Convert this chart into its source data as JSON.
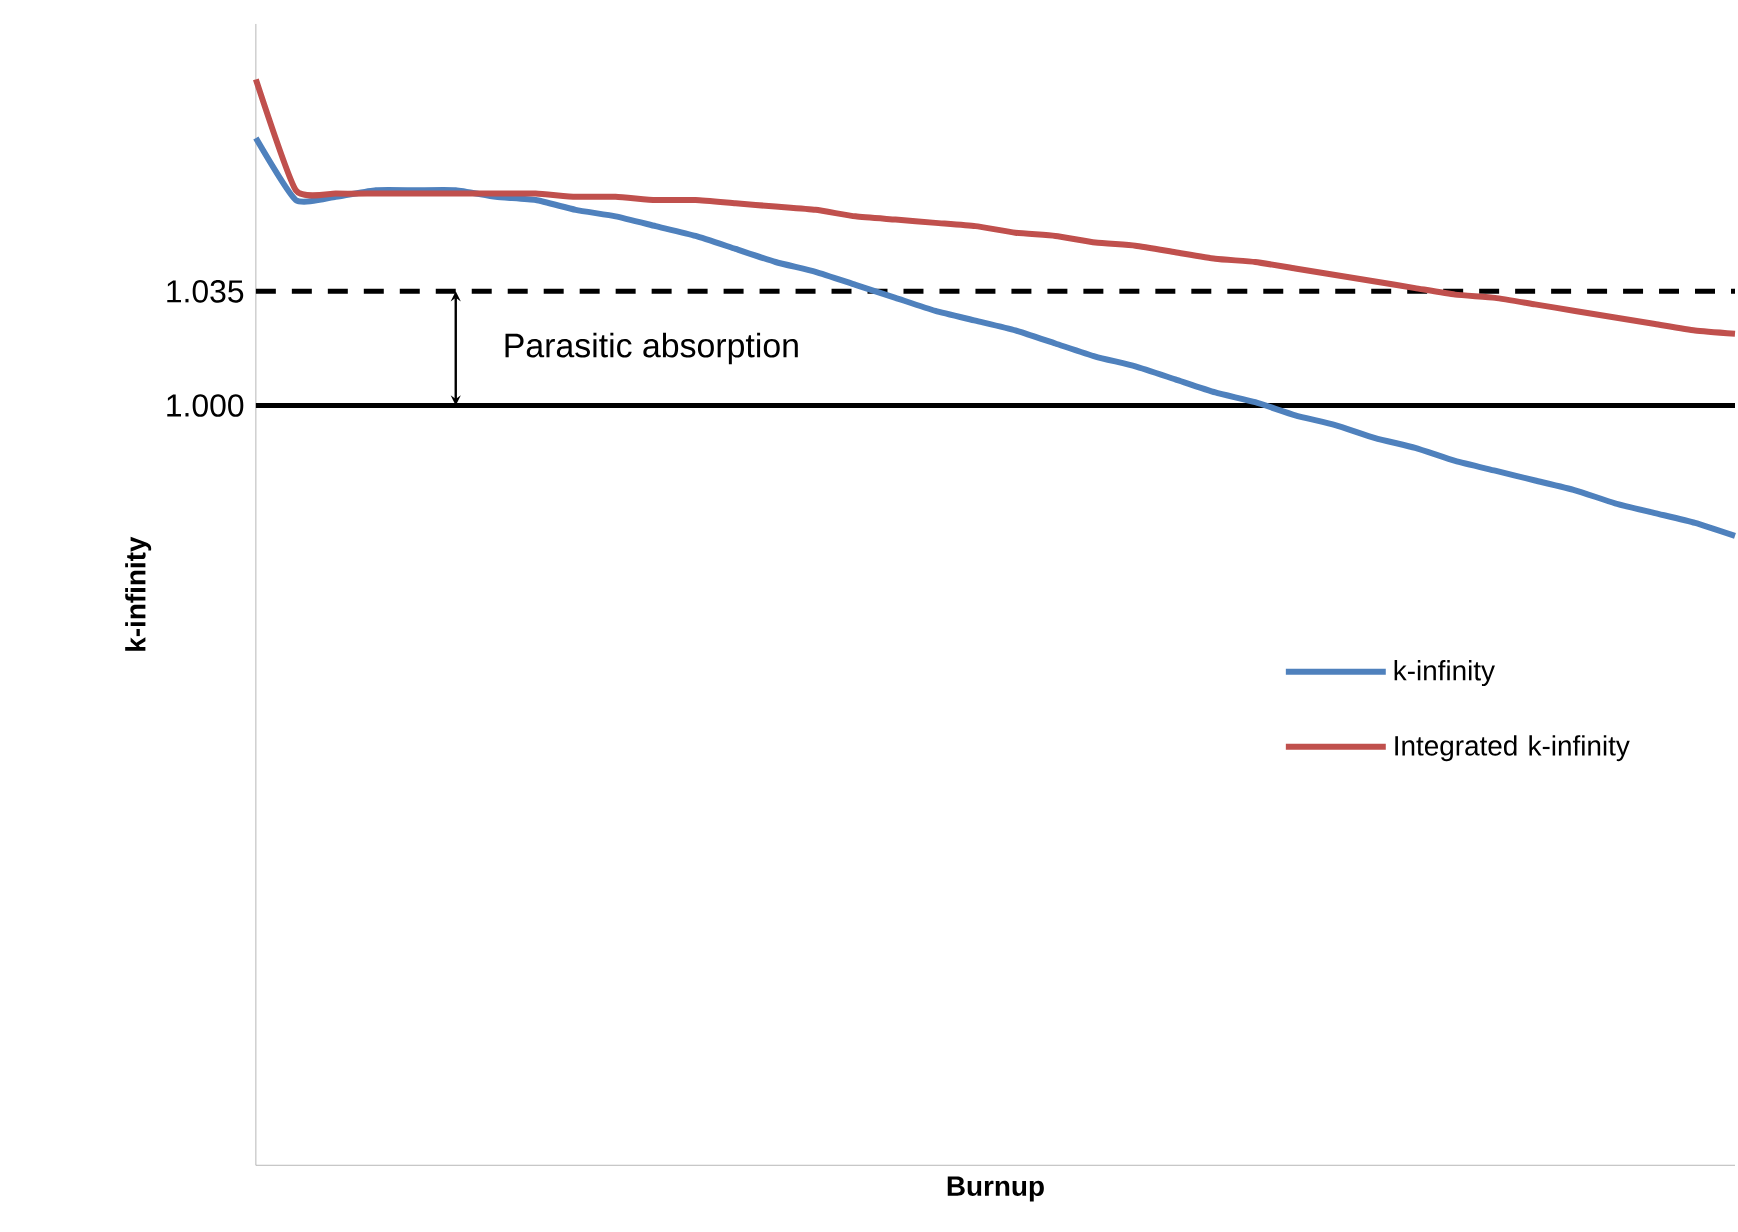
{
  "chart_data": {
    "type": "line",
    "xlabel": "Burnup",
    "ylabel": "k-infinity",
    "categories": [
      null,
      null,
      null,
      null,
      null,
      null,
      null,
      null,
      null,
      null,
      null,
      null,
      null,
      null,
      null,
      null,
      null,
      null,
      null,
      null,
      null,
      null,
      null,
      null,
      null,
      null,
      null,
      null,
      null,
      null,
      null,
      null,
      null,
      null,
      null,
      null,
      null,
      null
    ],
    "ylim": [
      0.767,
      1.117
    ],
    "yticks": [
      {
        "value": 1.0,
        "label": "1.000"
      },
      {
        "value": 1.035,
        "label": "1.035"
      }
    ],
    "series": [
      {
        "name": "k-infinity",
        "color": "#4f81bd",
        "values": [
          1.082,
          1.063,
          1.064,
          1.066,
          1.066,
          1.066,
          1.064,
          1.063,
          1.06,
          1.058,
          1.055,
          1.052,
          1.048,
          1.044,
          1.041,
          1.037,
          1.033,
          1.029,
          1.026,
          1.023,
          1.019,
          1.015,
          1.012,
          1.008,
          1.004,
          1.001,
          0.997,
          0.994,
          0.99,
          0.987,
          0.983,
          0.98,
          0.977,
          0.974,
          0.97,
          0.967,
          0.964,
          0.96
        ]
      },
      {
        "name": "Integrated k-infinity",
        "color": "#c0504d",
        "values": [
          1.1,
          1.066,
          1.065,
          1.065,
          1.065,
          1.065,
          1.065,
          1.065,
          1.064,
          1.064,
          1.063,
          1.063,
          1.062,
          1.061,
          1.06,
          1.058,
          1.057,
          1.056,
          1.055,
          1.053,
          1.052,
          1.05,
          1.049,
          1.047,
          1.045,
          1.044,
          1.042,
          1.04,
          1.038,
          1.036,
          1.034,
          1.033,
          1.031,
          1.029,
          1.027,
          1.025,
          1.023,
          1.022
        ]
      }
    ],
    "ref_lines": [
      {
        "axis": "y",
        "value": 1.0,
        "color": "#000000",
        "line_style": "solid"
      },
      {
        "axis": "y",
        "value": 1.035,
        "color": "#000000",
        "line_style": "dashed"
      }
    ],
    "annotations": [
      "Parasitic absorption"
    ],
    "legend": "right",
    "tick_labels": "y",
    "grid": false,
    "marker": "none",
    "line_style": "solid"
  }
}
